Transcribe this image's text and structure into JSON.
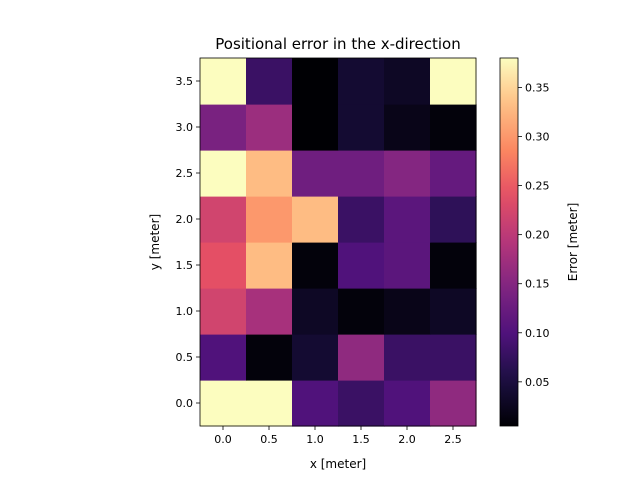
{
  "chart_data": {
    "type": "heatmap",
    "title": "Positional error in the x-direction",
    "xlabel": "x [meter]",
    "ylabel": "y [meter]",
    "colorbar_label": "Error [meter]",
    "colormap": "magma",
    "x": [
      0.0,
      0.5,
      1.0,
      1.5,
      2.0,
      2.5
    ],
    "y": [
      0.0,
      0.5,
      1.0,
      1.5,
      2.0,
      2.5,
      3.0,
      3.5
    ],
    "x_tick_labels": [
      "0.0",
      "0.5",
      "1.0",
      "1.5",
      "2.0",
      "2.5"
    ],
    "y_tick_labels": [
      "0.0",
      "0.5",
      "1.0",
      "1.5",
      "2.0",
      "2.5",
      "3.0",
      "3.5"
    ],
    "vmin": 0.005,
    "vmax": 0.38,
    "colorbar_ticks": [
      0.05,
      0.1,
      0.15,
      0.2,
      0.25,
      0.3,
      0.35
    ],
    "colorbar_tick_labels": [
      "0.05",
      "0.10",
      "0.15",
      "0.20",
      "0.25",
      "0.30",
      "0.35"
    ],
    "values": [
      [
        0.38,
        0.38,
        0.1,
        0.08,
        0.1,
        0.16
      ],
      [
        0.1,
        0.01,
        0.04,
        0.16,
        0.08,
        0.08
      ],
      [
        0.22,
        0.18,
        0.03,
        0.01,
        0.02,
        0.03
      ],
      [
        0.24,
        0.33,
        0.01,
        0.1,
        0.11,
        0.01
      ],
      [
        0.22,
        0.3,
        0.33,
        0.08,
        0.11,
        0.07
      ],
      [
        0.38,
        0.33,
        0.13,
        0.13,
        0.15,
        0.12
      ],
      [
        0.14,
        0.17,
        0.005,
        0.04,
        0.02,
        0.01
      ],
      [
        0.38,
        0.08,
        0.005,
        0.04,
        0.03,
        0.38
      ]
    ],
    "grid": false
  }
}
